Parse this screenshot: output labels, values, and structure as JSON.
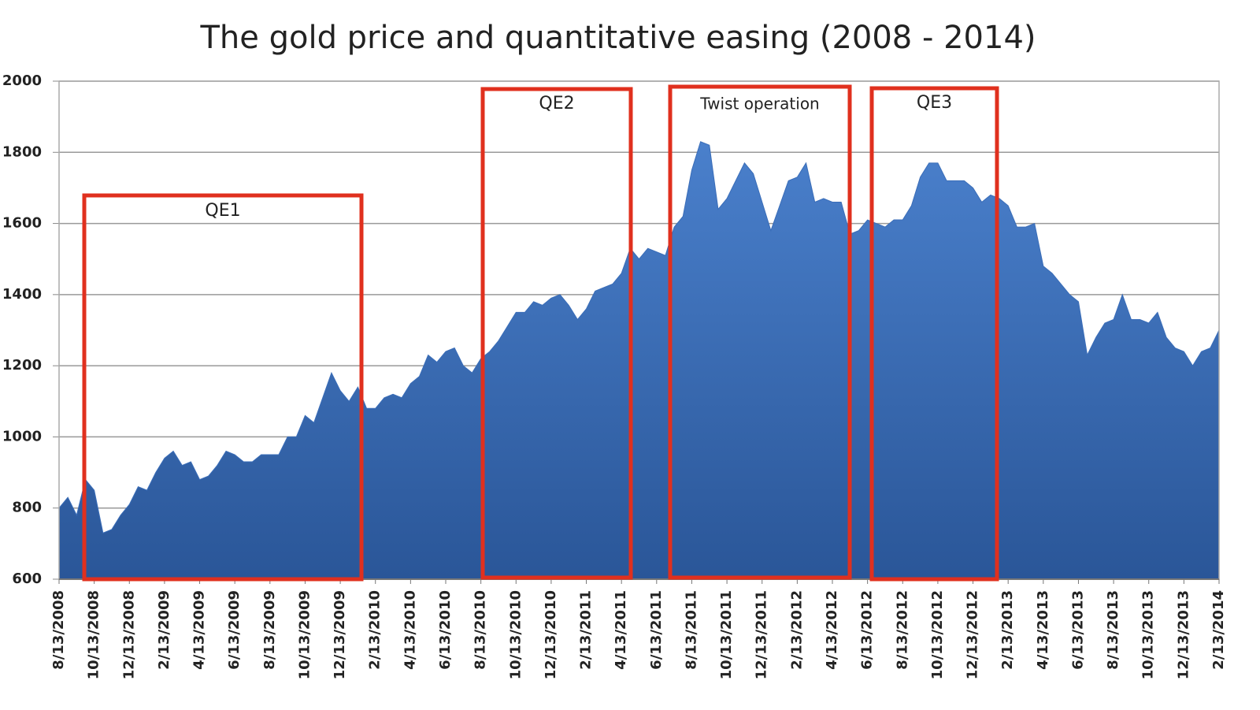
{
  "chart_data": {
    "type": "area",
    "title": "The gold price and quantitative easing (2008 - 2014)",
    "categories": [
      "8/13/2008",
      null,
      null,
      null,
      "10/13/2008",
      null,
      null,
      null,
      "12/13/2008",
      null,
      null,
      null,
      "2/13/2009",
      null,
      null,
      null,
      "4/13/2009",
      null,
      null,
      null,
      "6/13/2009",
      null,
      null,
      null,
      "8/13/2009",
      null,
      null,
      null,
      "10/13/2009",
      null,
      null,
      null,
      "12/13/2009",
      null,
      null,
      null,
      "2/13/2010",
      null,
      null,
      null,
      "4/13/2010",
      null,
      null,
      null,
      "6/13/2010",
      null,
      null,
      null,
      "8/13/2010",
      null,
      null,
      null,
      "10/13/2010",
      null,
      null,
      null,
      "12/13/2010",
      null,
      null,
      null,
      "2/13/2011",
      null,
      null,
      null,
      "4/13/2011",
      null,
      null,
      null,
      "6/13/2011",
      null,
      null,
      null,
      "8/13/2011",
      null,
      null,
      null,
      "10/13/2011",
      null,
      null,
      null,
      "12/13/2011",
      null,
      null,
      null,
      "2/13/2012",
      null,
      null,
      null,
      "4/13/2012",
      null,
      null,
      null,
      "6/13/2012",
      null,
      null,
      null,
      "8/13/2012",
      null,
      null,
      null,
      "10/13/2012",
      null,
      null,
      null,
      "12/13/2012",
      null,
      null,
      null,
      "2/13/2013",
      null,
      null,
      null,
      "4/13/2013",
      null,
      null,
      null,
      "6/13/2013",
      null,
      null,
      null,
      "8/13/2013",
      null,
      null,
      null,
      "10/13/2013",
      null,
      null,
      null,
      "12/13/2013",
      null,
      null,
      null,
      "2/13/2014"
    ],
    "values": [
      800,
      830,
      780,
      880,
      850,
      730,
      740,
      780,
      810,
      860,
      850,
      900,
      940,
      960,
      920,
      930,
      880,
      890,
      920,
      960,
      950,
      930,
      930,
      950,
      950,
      950,
      1000,
      1000,
      1060,
      1040,
      1110,
      1180,
      1130,
      1100,
      1140,
      1080,
      1080,
      1110,
      1120,
      1110,
      1150,
      1170,
      1230,
      1210,
      1240,
      1250,
      1200,
      1180,
      1220,
      1240,
      1270,
      1310,
      1350,
      1350,
      1380,
      1370,
      1390,
      1400,
      1370,
      1330,
      1360,
      1410,
      1420,
      1430,
      1460,
      1530,
      1500,
      1530,
      1520,
      1510,
      1590,
      1620,
      1750,
      1830,
      1820,
      1640,
      1670,
      1720,
      1770,
      1740,
      1660,
      1580,
      1650,
      1720,
      1730,
      1770,
      1660,
      1670,
      1660,
      1660,
      1570,
      1580,
      1610,
      1600,
      1590,
      1610,
      1610,
      1650,
      1730,
      1770,
      1770,
      1720,
      1720,
      1720,
      1700,
      1660,
      1680,
      1670,
      1650,
      1590,
      1590,
      1600,
      1480,
      1460,
      1430,
      1400,
      1380,
      1230,
      1280,
      1320,
      1330,
      1400,
      1330,
      1330,
      1320,
      1350,
      1280,
      1250,
      1240,
      1200,
      1240,
      1250,
      1300
    ],
    "color": "#3a6db8",
    "ylim": [
      600,
      2000
    ],
    "yticks": [
      600,
      800,
      1000,
      1200,
      1400,
      1600,
      1800,
      2000
    ],
    "grid": true,
    "annotations": [
      "QE1",
      "QE2",
      "Twist operation",
      "QE3"
    ]
  }
}
